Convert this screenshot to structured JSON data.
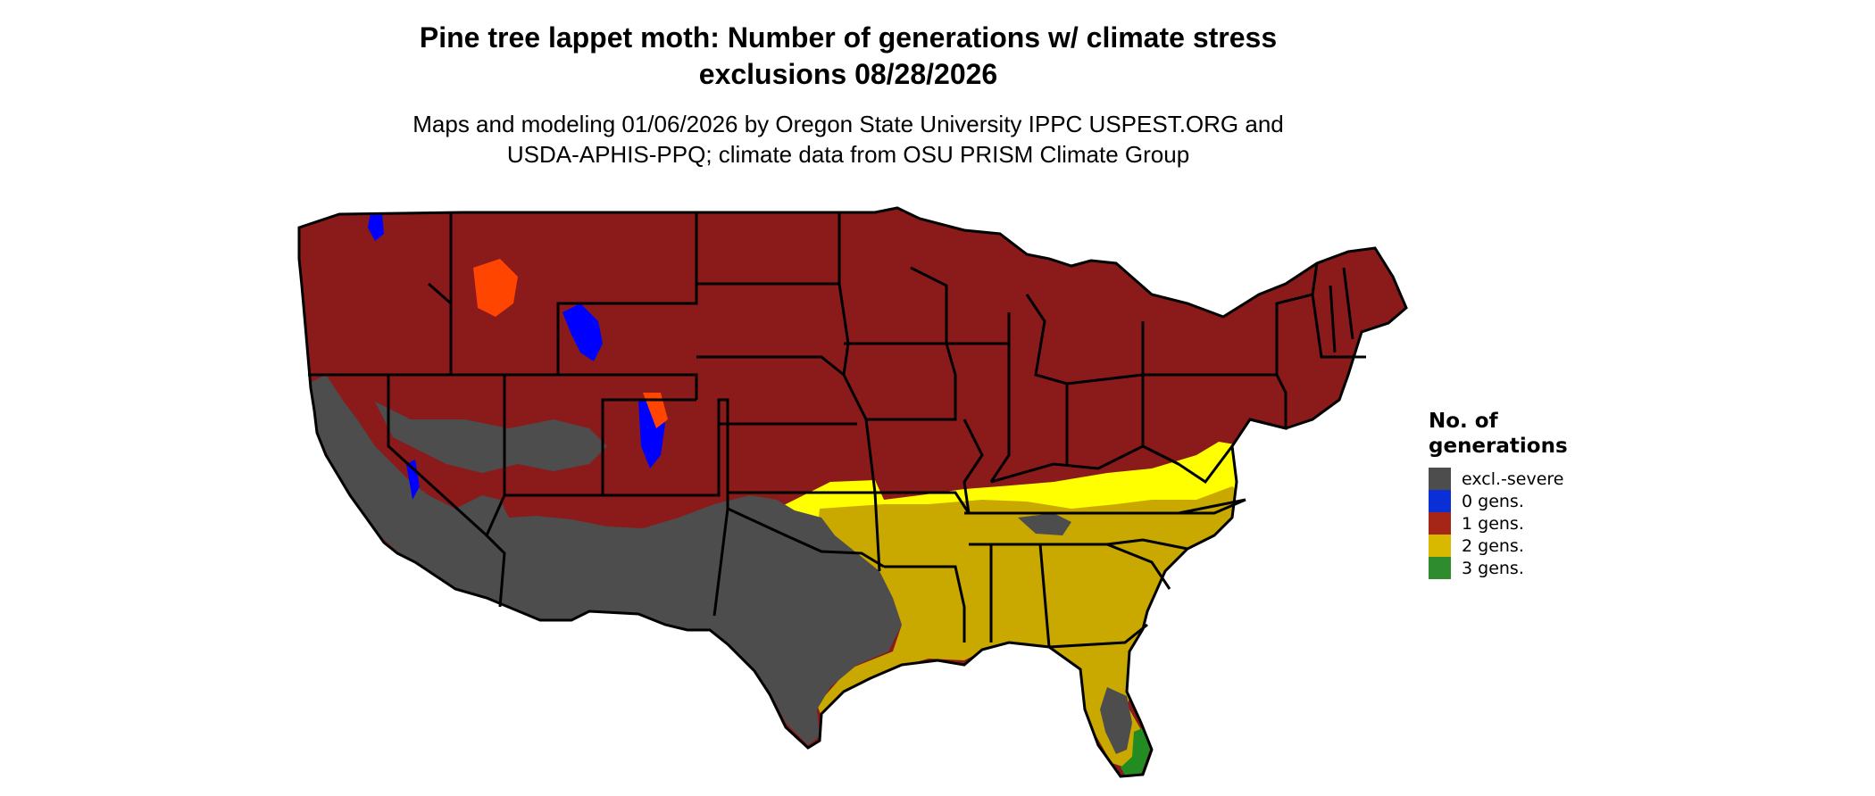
{
  "title_lines": [
    "Pine tree lappet moth: Number of generations w/ climate stress",
    "exclusions 08/28/2026"
  ],
  "subtitle_lines": [
    "Maps and modeling 01/06/2026 by Oregon State University IPPC USPEST.ORG and",
    "USDA-APHIS-PPQ; climate data from OSU PRISM Climate Group"
  ],
  "legend": {
    "title_lines": [
      "No. of",
      "generations"
    ],
    "items": [
      {
        "label": "excl.-severe",
        "color": "#4d4d4d"
      },
      {
        "label": "0 gens.",
        "color": "#0a2fd6"
      },
      {
        "label": "1 gens.",
        "color": "#a52617"
      },
      {
        "label": "2 gens.",
        "color": "#d9b800"
      },
      {
        "label": "3 gens.",
        "color": "#2e8b2e"
      }
    ]
  },
  "map_colors": {
    "one_gen": "#8b1a1a",
    "two_gen": "#c9a800",
    "two_gen_bright": "#ffff00",
    "excluded": "#4d4d4d",
    "zero_gen": "#0000ff",
    "one_gen_light": "#ff4500",
    "three_gen": "#228b22",
    "borders": "#000000"
  }
}
